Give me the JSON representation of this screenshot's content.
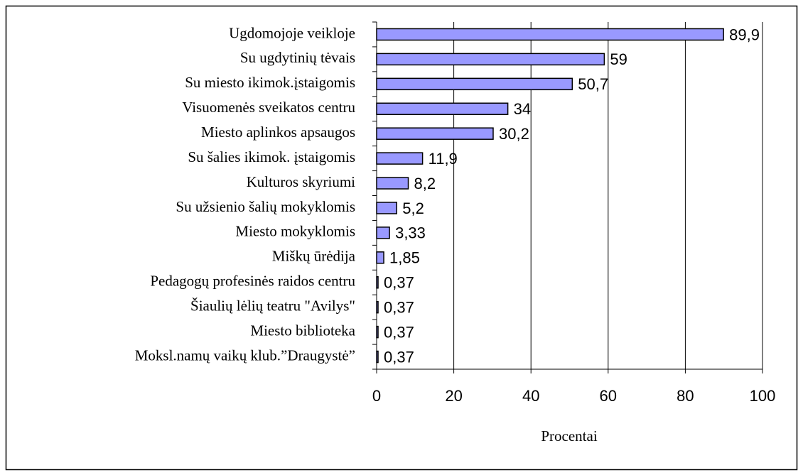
{
  "chart_data": {
    "type": "bar",
    "orientation": "horizontal",
    "categories": [
      "Ugdomojoje veikloje",
      "Su ugdytinių tėvais",
      "Su miesto ikimok.įstaigomis",
      "Visuomenės sveikatos centru",
      "Miesto aplinkos apsaugos",
      "Su šalies ikimok. įstaigomis",
      "Kulturos skyriumi",
      "Su užsienio šalių mokyklomis",
      "Miesto mokyklomis",
      "Miškų ūrėdija",
      "Pedagogų profesinės raidos centru",
      "Šiaulių lėlių teatru \"Avilys\"",
      "Miesto biblioteka",
      "Moksl.namų vaikų klub.”Draugystė”"
    ],
    "values": [
      89.9,
      59,
      50.7,
      34,
      30.2,
      11.9,
      8.2,
      5.2,
      3.33,
      1.85,
      0.37,
      0.37,
      0.37,
      0.37
    ],
    "value_labels": [
      "89,9",
      "59",
      "50,7",
      "34",
      "30,2",
      "11,9",
      "8,2",
      "5,2",
      "3,33",
      "1,85",
      "0,37",
      "0,37",
      "0,37",
      "0,37"
    ],
    "color": "#9999ff",
    "x_label": "Procentai",
    "xlim": [
      0,
      100
    ],
    "xticks": [
      0,
      20,
      40,
      60,
      80,
      100
    ],
    "grid": true
  }
}
